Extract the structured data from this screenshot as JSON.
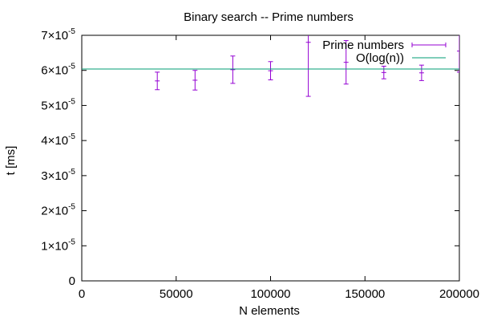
{
  "chart_data": {
    "type": "scatter",
    "title": "Binary search -- Prime numbers",
    "xlabel": "N elements",
    "ylabel": "t [ms]",
    "xlim": [
      0,
      200000
    ],
    "ylim": [
      0,
      7e-05
    ],
    "x_ticks": [
      {
        "value": 0,
        "label": "0"
      },
      {
        "value": 50000,
        "label": "50000"
      },
      {
        "value": 100000,
        "label": "100000"
      },
      {
        "value": 150000,
        "label": "150000"
      },
      {
        "value": 200000,
        "label": "200000"
      }
    ],
    "y_ticks": [
      {
        "value": 0,
        "mantissa": "0",
        "exponent": ""
      },
      {
        "value": 1e-05,
        "mantissa": "1×10",
        "exponent": "-5"
      },
      {
        "value": 2e-05,
        "mantissa": "2×10",
        "exponent": "-5"
      },
      {
        "value": 3e-05,
        "mantissa": "3×10",
        "exponent": "-5"
      },
      {
        "value": 4e-05,
        "mantissa": "4×10",
        "exponent": "-5"
      },
      {
        "value": 5e-05,
        "mantissa": "5×10",
        "exponent": "-5"
      },
      {
        "value": 6e-05,
        "mantissa": "6×10",
        "exponent": "-5"
      },
      {
        "value": 7e-05,
        "mantissa": "7×10",
        "exponent": "-5"
      }
    ],
    "grid": false,
    "legend_position": "top-right",
    "series": [
      {
        "name": "Prime numbers",
        "kind": "errorbars",
        "color": "#9400d3",
        "points": [
          {
            "x": 40000,
            "y": 5.7e-05,
            "err": 2.5e-06
          },
          {
            "x": 60000,
            "y": 5.72e-05,
            "err": 2.8e-06
          },
          {
            "x": 80000,
            "y": 6.02e-05,
            "err": 3.9e-06
          },
          {
            "x": 100000,
            "y": 5.99e-05,
            "err": 2.6e-06
          },
          {
            "x": 120000,
            "y": 6.8e-05,
            "err": 1.54e-05
          },
          {
            "x": 140000,
            "y": 6.23e-05,
            "err": 6.2e-06
          },
          {
            "x": 160000,
            "y": 5.94e-05,
            "err": 1.8e-06
          },
          {
            "x": 180000,
            "y": 5.93e-05,
            "err": 2.2e-06
          },
          {
            "x": 200000,
            "y": 6.55e-05,
            "err": 6e-06
          }
        ]
      },
      {
        "name": "O(log(n))",
        "kind": "line",
        "color": "#009e73",
        "points": [
          {
            "x": 0,
            "y": 6.04e-05
          },
          {
            "x": 200000,
            "y": 6.04e-05
          }
        ]
      }
    ]
  }
}
